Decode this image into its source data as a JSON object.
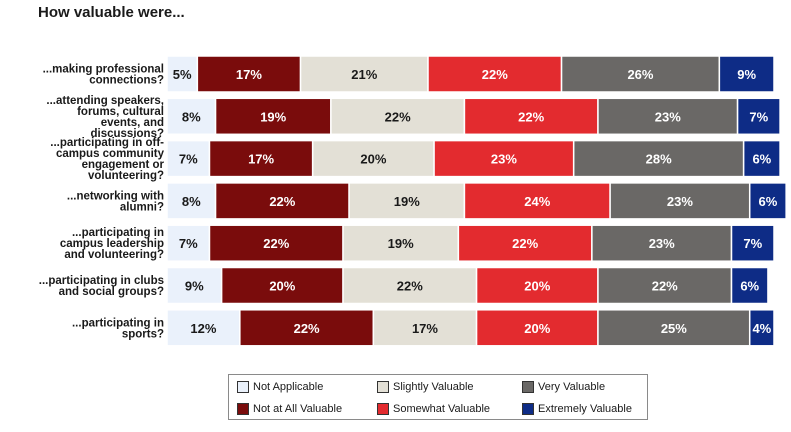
{
  "chart_data": {
    "type": "bar",
    "orientation": "horizontal-stacked-100",
    "title": "How valuable were...",
    "categories": [
      "...making professional connections?",
      "...attending speakers, forums, cultural events, and discussions?",
      "...participating in off-campus community engagement or volunteering?",
      "...networking with alumni?",
      "...participating in campus leadership and volunteering?",
      "...participating in clubs and social groups?",
      "...participating in sports?"
    ],
    "category_lines": [
      [
        "...making professional",
        "connections?"
      ],
      [
        "...attending speakers,",
        "forums, cultural",
        "events, and",
        "discussions?"
      ],
      [
        "...participating in off-",
        "campus community",
        "engagement or",
        "volunteering?"
      ],
      [
        "...networking with",
        "alumni?"
      ],
      [
        "...participating in",
        "campus leadership",
        "and volunteering?"
      ],
      [
        "...participating in clubs",
        "and social groups?"
      ],
      [
        "...participating in",
        "sports?"
      ]
    ],
    "series": [
      {
        "name": "Not Applicable",
        "color": "#eaf1fb",
        "text_color": "#1a1a1a",
        "values": [
          5,
          8,
          7,
          8,
          7,
          9,
          12
        ]
      },
      {
        "name": "Not at All Valuable",
        "color": "#7a0c0c",
        "text_color": "#ffffff",
        "values": [
          17,
          19,
          17,
          22,
          22,
          20,
          22
        ]
      },
      {
        "name": "Slightly Valuable",
        "color": "#e3e0d6",
        "text_color": "#1a1a1a",
        "values": [
          21,
          22,
          20,
          19,
          19,
          22,
          17
        ]
      },
      {
        "name": "Somewhat Valuable",
        "color": "#e32b2f",
        "text_color": "#ffffff",
        "values": [
          22,
          22,
          23,
          24,
          22,
          20,
          20
        ]
      },
      {
        "name": "Very Valuable",
        "color": "#6a6866",
        "text_color": "#ffffff",
        "values": [
          26,
          23,
          28,
          23,
          23,
          22,
          25
        ]
      },
      {
        "name": "Extremely Valuable",
        "color": "#0e2c86",
        "text_color": "#ffffff",
        "values": [
          9,
          7,
          6,
          6,
          7,
          6,
          4
        ]
      }
    ],
    "value_suffix": "%",
    "xlim": [
      0,
      100
    ],
    "legend_position": "bottom"
  }
}
